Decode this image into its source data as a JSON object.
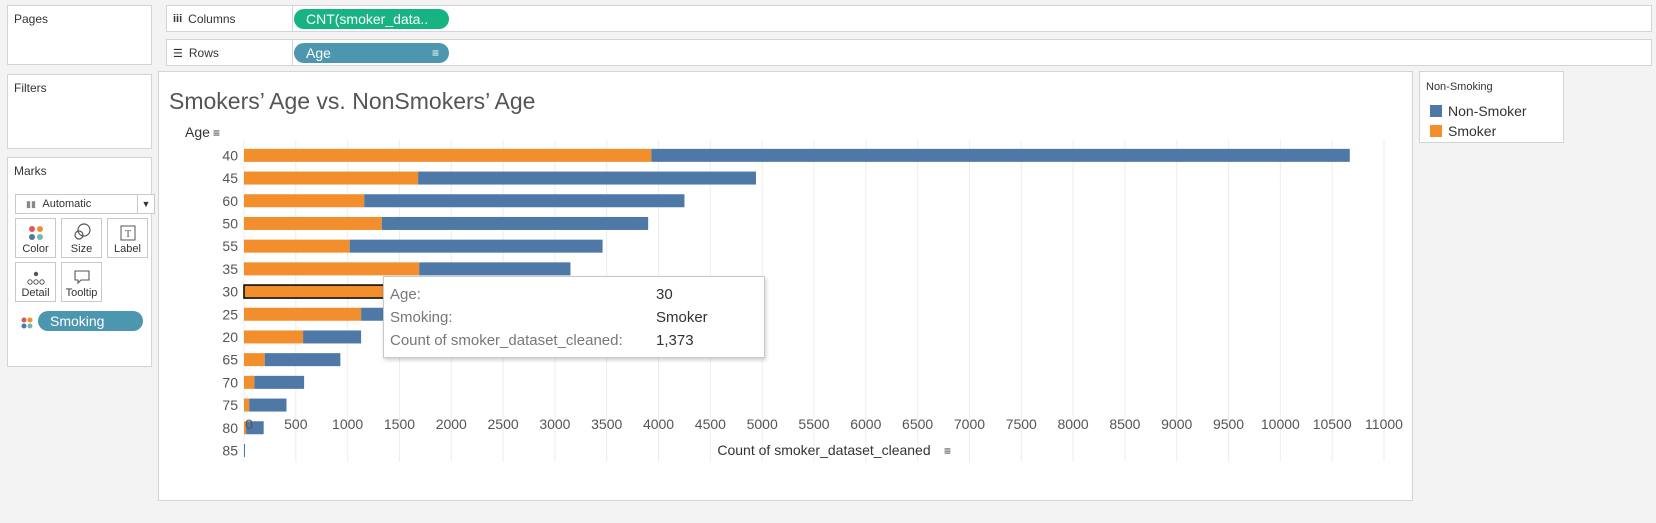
{
  "panes": {
    "pages_title": "Pages",
    "filters_title": "Filters",
    "marks_title": "Marks"
  },
  "shelves": {
    "columns_label": "Columns",
    "columns_pill": "CNT(smoker_data..",
    "rows_label": "Rows",
    "rows_pill": "Age"
  },
  "marks": {
    "type": "Automatic",
    "cards": [
      "Color",
      "Size",
      "Label",
      "Detail",
      "Tooltip"
    ],
    "color_pill": "Smoking"
  },
  "legend": {
    "title": "Non-Smoking",
    "items": [
      {
        "label": "Non-Smoker",
        "color": "#4e79a7"
      },
      {
        "label": "Smoker",
        "color": "#f28e2b"
      }
    ]
  },
  "tooltip": {
    "rows": [
      {
        "key": "Age:",
        "value": "30"
      },
      {
        "key": "Smoking:",
        "value": "Smoker"
      },
      {
        "key": "Count of smoker_dataset_cleaned:",
        "value": "1,373"
      }
    ]
  },
  "chart_data": {
    "type": "bar",
    "orientation": "horizontal",
    "stacked": true,
    "title": "Smokers’ Age vs. NonSmokers’ Age",
    "ylabel": "Age",
    "xlabel": "Count of smoker_dataset_cleaned",
    "categories": [
      "40",
      "45",
      "60",
      "50",
      "55",
      "35",
      "30",
      "25",
      "20",
      "65",
      "70",
      "75",
      "80",
      "85"
    ],
    "series": [
      {
        "name": "Smoker",
        "color": "#f28e2b",
        "values": [
          3930,
          1680,
          1160,
          1330,
          1020,
          1690,
          1373,
          1130,
          570,
          200,
          100,
          50,
          20,
          0
        ]
      },
      {
        "name": "Non-Smoker",
        "color": "#4e79a7",
        "values": [
          6740,
          3260,
          3090,
          2570,
          2440,
          1460,
          1497,
          1170,
          560,
          730,
          480,
          360,
          170,
          10
        ]
      }
    ],
    "xlim": [
      0,
      11000
    ],
    "xticks": [
      0,
      500,
      1000,
      1500,
      2000,
      2500,
      3000,
      3500,
      4000,
      4500,
      5000,
      5500,
      6000,
      6500,
      7000,
      7500,
      8000,
      8500,
      9000,
      9500,
      10000,
      10500,
      11000
    ],
    "highlighted": {
      "category": "30",
      "series": "Smoker"
    },
    "grid": "vertical"
  }
}
